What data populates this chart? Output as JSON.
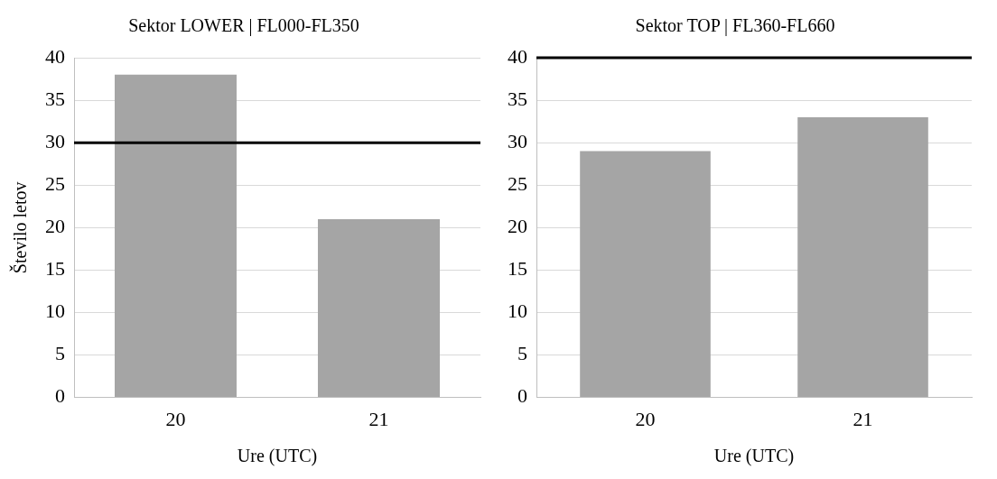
{
  "chart_data": [
    {
      "type": "bar",
      "title": "Sektor LOWER | FL000-FL350",
      "xlabel": "Ure (UTC)",
      "ylabel": "Število letov",
      "categories": [
        "20",
        "21"
      ],
      "values": [
        38,
        21
      ],
      "color": "#a5a5a5",
      "ylim": [
        0,
        40
      ],
      "yticks": [
        0,
        5,
        10,
        15,
        20,
        25,
        30,
        35,
        40
      ],
      "grid": "y",
      "legend": false,
      "ref_lines": [
        {
          "axis": "y",
          "value": 30,
          "color": "#000000"
        }
      ]
    },
    {
      "type": "bar",
      "title": "Sektor TOP | FL360-FL660",
      "xlabel": "Ure (UTC)",
      "categories": [
        "20",
        "21"
      ],
      "values": [
        29,
        33
      ],
      "color": "#a5a5a5",
      "ylim": [
        0,
        40
      ],
      "yticks": [
        0,
        5,
        10,
        15,
        20,
        25,
        30,
        35,
        40
      ],
      "grid": "y",
      "legend": false,
      "ref_lines": [
        {
          "axis": "y",
          "value": 40,
          "color": "#000000"
        }
      ]
    }
  ]
}
